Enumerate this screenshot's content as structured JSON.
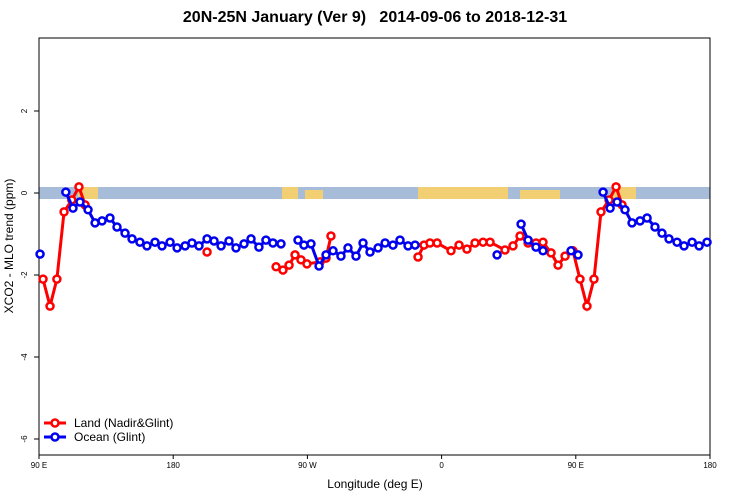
{
  "chart_data": {
    "type": "line",
    "title": "20N-25N January (Ver 9)   2014-09-06 to 2018-12-31",
    "x_label": "Longitude (deg E)",
    "y_label": "XCO2 - MLO trend (ppm)",
    "xlim": [
      90,
      540
    ],
    "ylim": [
      -6.39,
      3.78
    ],
    "xticks": [
      {
        "value": 90,
        "label": "90 E"
      },
      180,
      {
        "value": 270,
        "label": "90 W"
      },
      {
        "value": 360,
        "label": "0"
      },
      {
        "value": 450,
        "label": "90 E"
      },
      {
        "value": 540,
        "label": "180"
      }
    ],
    "yticks": [
      -6,
      -4,
      -2,
      0,
      2
    ],
    "legend": "bottom left",
    "series": [
      {
        "name": "Land (Nadir&Glint)",
        "color": "#ff0000",
        "x": [
          92.7,
          97.4,
          102,
          106.8,
          112,
          116.8,
          120.9,
          null,
          202.7,
          null,
          249,
          253.6,
          257.7,
          261.7,
          265.7,
          269.7,
          278.5,
          282.5,
          285.8,
          null,
          344.2,
          348.2,
          352.2,
          357,
          366.3,
          371.7,
          377,
          382.4,
          387.8,
          392.5,
          402.5,
          407.9,
          412.6,
          418,
          423.3,
          428,
          433.4,
          438.1,
          442.8,
          448.1,
          452.8,
          457.5,
          462.2,
          466.9,
          472.3,
          477,
          481
        ],
        "values": [
          -2.1,
          -2.76,
          -2.1,
          -0.46,
          -0.17,
          0.15,
          -0.29,
          null,
          -1.44,
          null,
          -1.8,
          -1.88,
          -1.76,
          -1.51,
          -1.63,
          -1.73,
          -1.68,
          -1.59,
          -1.05,
          null,
          -1.56,
          -1.27,
          -1.22,
          -1.22,
          -1.41,
          -1.27,
          -1.37,
          -1.22,
          -1.2,
          -1.2,
          -1.39,
          -1.29,
          -1.05,
          -1.22,
          -1.22,
          -1.2,
          -1.46,
          -1.76,
          -1.54,
          -1.41,
          -2.1,
          -2.76,
          -2.1,
          -0.46,
          -0.17,
          0.15,
          -0.29
        ]
      },
      {
        "name": "Ocean (Glint)",
        "color": "#0000ee",
        "x": [
          90.7,
          null,
          108,
          112.8,
          117.5,
          122.9,
          127.6,
          132.3,
          137.6,
          142.3,
          147.7,
          152.4,
          157.7,
          162.4,
          167.8,
          172.5,
          177.9,
          182.6,
          188,
          192.6,
          197.3,
          202.7,
          207.4,
          212.1,
          217.4,
          222.1,
          227.5,
          232.2,
          237.5,
          242.2,
          246.9,
          252.3,
          null,
          263.7,
          267.7,
          272.4,
          277.8,
          282.5,
          287.2,
          292.5,
          297.2,
          302.6,
          307.3,
          312,
          317.4,
          322.1,
          327.4,
          332.1,
          337.5,
          342.2,
          null,
          397.2,
          null,
          413.3,
          418,
          423.3,
          428,
          null,
          446.8,
          451.5,
          null,
          468.3,
          473,
          477.7,
          483,
          487.7,
          493.1,
          497.8,
          503.1,
          507.8,
          512.5,
          517.9,
          522.6,
          528,
          532.7,
          538
        ],
        "values": [
          -1.49,
          null,
          0.02,
          -0.37,
          -0.22,
          -0.41,
          -0.73,
          -0.68,
          -0.61,
          -0.83,
          -0.98,
          -1.12,
          -1.2,
          -1.29,
          -1.2,
          -1.29,
          -1.2,
          -1.34,
          -1.29,
          -1.22,
          -1.29,
          -1.12,
          -1.17,
          -1.29,
          -1.17,
          -1.34,
          -1.24,
          -1.12,
          -1.32,
          -1.15,
          -1.22,
          -1.24,
          null,
          -1.15,
          -1.27,
          -1.24,
          -1.78,
          -1.51,
          -1.41,
          -1.54,
          -1.34,
          -1.54,
          -1.22,
          -1.44,
          -1.34,
          -1.22,
          -1.27,
          -1.15,
          -1.29,
          -1.27,
          null,
          -1.51,
          null,
          -0.76,
          -1.15,
          -1.32,
          -1.41,
          null,
          -1.41,
          -1.51,
          null,
          0.02,
          -0.37,
          -0.22,
          -0.41,
          -0.73,
          -0.68,
          -0.61,
          -0.83,
          -0.98,
          -1.12,
          -1.2,
          -1.29,
          -1.2,
          -1.29,
          -1.2
        ]
      }
    ]
  }
}
